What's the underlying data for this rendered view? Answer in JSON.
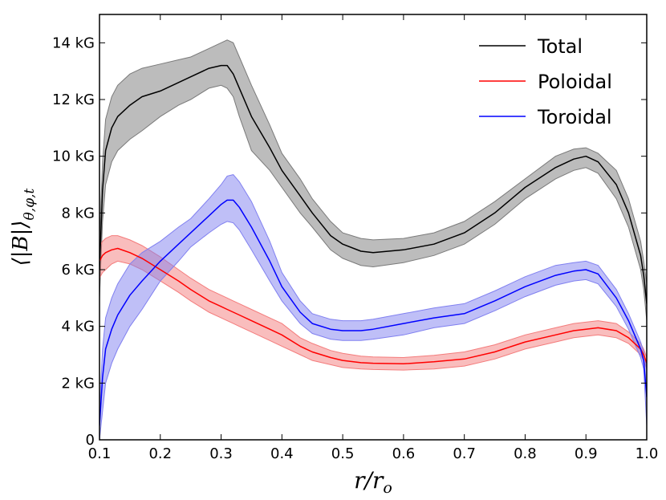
{
  "chart_data": {
    "type": "line",
    "title": "",
    "xlabel": "r/r_o",
    "ylabel": "⟨|B|⟩_θ,φ,t",
    "xlim": [
      0.1,
      1.0
    ],
    "ylim": [
      0,
      15
    ],
    "x_ticks": [
      0.1,
      0.2,
      0.3,
      0.4,
      0.5,
      0.6,
      0.7,
      0.8,
      0.9,
      1.0
    ],
    "x_tick_labels": [
      "0.1",
      "0.2",
      "0.3",
      "0.4",
      "0.5",
      "0.6",
      "0.7",
      "0.8",
      "0.9",
      "1.0"
    ],
    "y_ticks": [
      0,
      2,
      4,
      6,
      8,
      10,
      12,
      14
    ],
    "y_tick_labels": [
      "0",
      "2 kG",
      "4 kG",
      "6 kG",
      "8 kG",
      "10 kG",
      "12 kG",
      "14 kG"
    ],
    "legend_position": "top-right",
    "grid": false,
    "x": [
      0.1,
      0.105,
      0.11,
      0.12,
      0.13,
      0.15,
      0.17,
      0.2,
      0.23,
      0.25,
      0.28,
      0.3,
      0.31,
      0.32,
      0.33,
      0.35,
      0.38,
      0.4,
      0.43,
      0.45,
      0.48,
      0.5,
      0.53,
      0.55,
      0.6,
      0.65,
      0.7,
      0.75,
      0.8,
      0.85,
      0.88,
      0.9,
      0.92,
      0.95,
      0.97,
      0.99,
      0.995,
      1.0
    ],
    "series": [
      {
        "name": "Total",
        "color": "#000000",
        "fill": "#7a7a7a",
        "values": [
          6.0,
          8.8,
          10.2,
          11.0,
          11.4,
          11.8,
          12.1,
          12.3,
          12.6,
          12.8,
          13.1,
          13.2,
          13.2,
          12.9,
          12.4,
          11.4,
          10.3,
          9.5,
          8.6,
          8.0,
          7.2,
          6.9,
          6.65,
          6.6,
          6.7,
          6.9,
          7.3,
          8.0,
          8.9,
          9.6,
          9.9,
          10.0,
          9.8,
          9.0,
          8.0,
          6.5,
          5.8,
          4.8
        ],
        "lower": [
          5.0,
          7.7,
          9.0,
          9.8,
          10.2,
          10.6,
          10.9,
          11.4,
          11.8,
          12.0,
          12.4,
          12.5,
          12.4,
          12.1,
          11.4,
          10.2,
          9.5,
          8.9,
          8.0,
          7.5,
          6.7,
          6.4,
          6.15,
          6.1,
          6.25,
          6.5,
          6.9,
          7.6,
          8.5,
          9.2,
          9.5,
          9.6,
          9.4,
          8.5,
          7.5,
          6.0,
          5.3,
          4.2
        ],
        "upper": [
          7.0,
          9.8,
          11.3,
          12.1,
          12.5,
          12.9,
          13.1,
          13.25,
          13.4,
          13.5,
          13.8,
          14.0,
          14.1,
          14.0,
          13.5,
          12.5,
          11.1,
          10.1,
          9.2,
          8.5,
          7.7,
          7.3,
          7.1,
          7.05,
          7.1,
          7.3,
          7.7,
          8.4,
          9.2,
          10.0,
          10.25,
          10.3,
          10.1,
          9.5,
          8.5,
          7.0,
          6.3,
          5.5
        ]
      },
      {
        "name": "Poloidal",
        "color": "#ff0000",
        "fill": "#f47c7c",
        "values": [
          6.3,
          6.5,
          6.6,
          6.7,
          6.75,
          6.6,
          6.4,
          6.0,
          5.6,
          5.3,
          4.9,
          4.7,
          4.6,
          4.5,
          4.4,
          4.2,
          3.9,
          3.7,
          3.3,
          3.1,
          2.9,
          2.8,
          2.72,
          2.7,
          2.68,
          2.75,
          2.85,
          3.1,
          3.45,
          3.7,
          3.85,
          3.9,
          3.95,
          3.85,
          3.6,
          3.2,
          3.0,
          2.7
        ],
        "lower": [
          5.7,
          5.9,
          6.0,
          6.2,
          6.3,
          6.2,
          6.0,
          5.6,
          5.2,
          4.9,
          4.5,
          4.3,
          4.2,
          4.1,
          4.0,
          3.8,
          3.5,
          3.3,
          3.0,
          2.8,
          2.65,
          2.55,
          2.5,
          2.48,
          2.46,
          2.5,
          2.6,
          2.85,
          3.2,
          3.45,
          3.6,
          3.65,
          3.7,
          3.6,
          3.4,
          3.0,
          2.8,
          2.5
        ],
        "upper": [
          6.8,
          7.0,
          7.1,
          7.2,
          7.2,
          7.05,
          6.85,
          6.45,
          6.0,
          5.7,
          5.3,
          5.1,
          5.0,
          4.9,
          4.8,
          4.6,
          4.3,
          4.1,
          3.6,
          3.4,
          3.15,
          3.05,
          2.95,
          2.92,
          2.9,
          2.98,
          3.1,
          3.35,
          3.7,
          3.95,
          4.1,
          4.15,
          4.2,
          4.1,
          3.8,
          3.4,
          3.2,
          2.9
        ]
      },
      {
        "name": "Toroidal",
        "color": "#0000ff",
        "fill": "#8080f0",
        "values": [
          0.5,
          2.2,
          3.2,
          3.9,
          4.4,
          5.1,
          5.6,
          6.3,
          6.9,
          7.3,
          7.9,
          8.3,
          8.45,
          8.45,
          8.2,
          7.5,
          6.3,
          5.4,
          4.5,
          4.1,
          3.9,
          3.85,
          3.85,
          3.9,
          4.1,
          4.3,
          4.45,
          4.9,
          5.4,
          5.8,
          5.95,
          6.0,
          5.85,
          5.0,
          4.2,
          3.2,
          2.8,
          1.5
        ],
        "lower": [
          0.0,
          1.0,
          2.0,
          2.7,
          3.2,
          4.0,
          4.6,
          5.6,
          6.3,
          6.8,
          7.3,
          7.6,
          7.7,
          7.65,
          7.4,
          6.7,
          5.6,
          4.9,
          4.1,
          3.75,
          3.55,
          3.5,
          3.5,
          3.55,
          3.7,
          3.95,
          4.1,
          4.55,
          5.05,
          5.45,
          5.6,
          5.65,
          5.5,
          4.7,
          3.9,
          2.9,
          2.5,
          0.5
        ],
        "upper": [
          1.0,
          3.2,
          4.3,
          5.0,
          5.5,
          6.2,
          6.6,
          7.0,
          7.5,
          7.8,
          8.5,
          9.0,
          9.3,
          9.35,
          9.1,
          8.4,
          7.0,
          5.9,
          4.9,
          4.45,
          4.25,
          4.2,
          4.2,
          4.25,
          4.45,
          4.65,
          4.8,
          5.25,
          5.75,
          6.15,
          6.25,
          6.3,
          6.15,
          5.3,
          4.45,
          3.45,
          3.1,
          2.5
        ]
      }
    ]
  }
}
